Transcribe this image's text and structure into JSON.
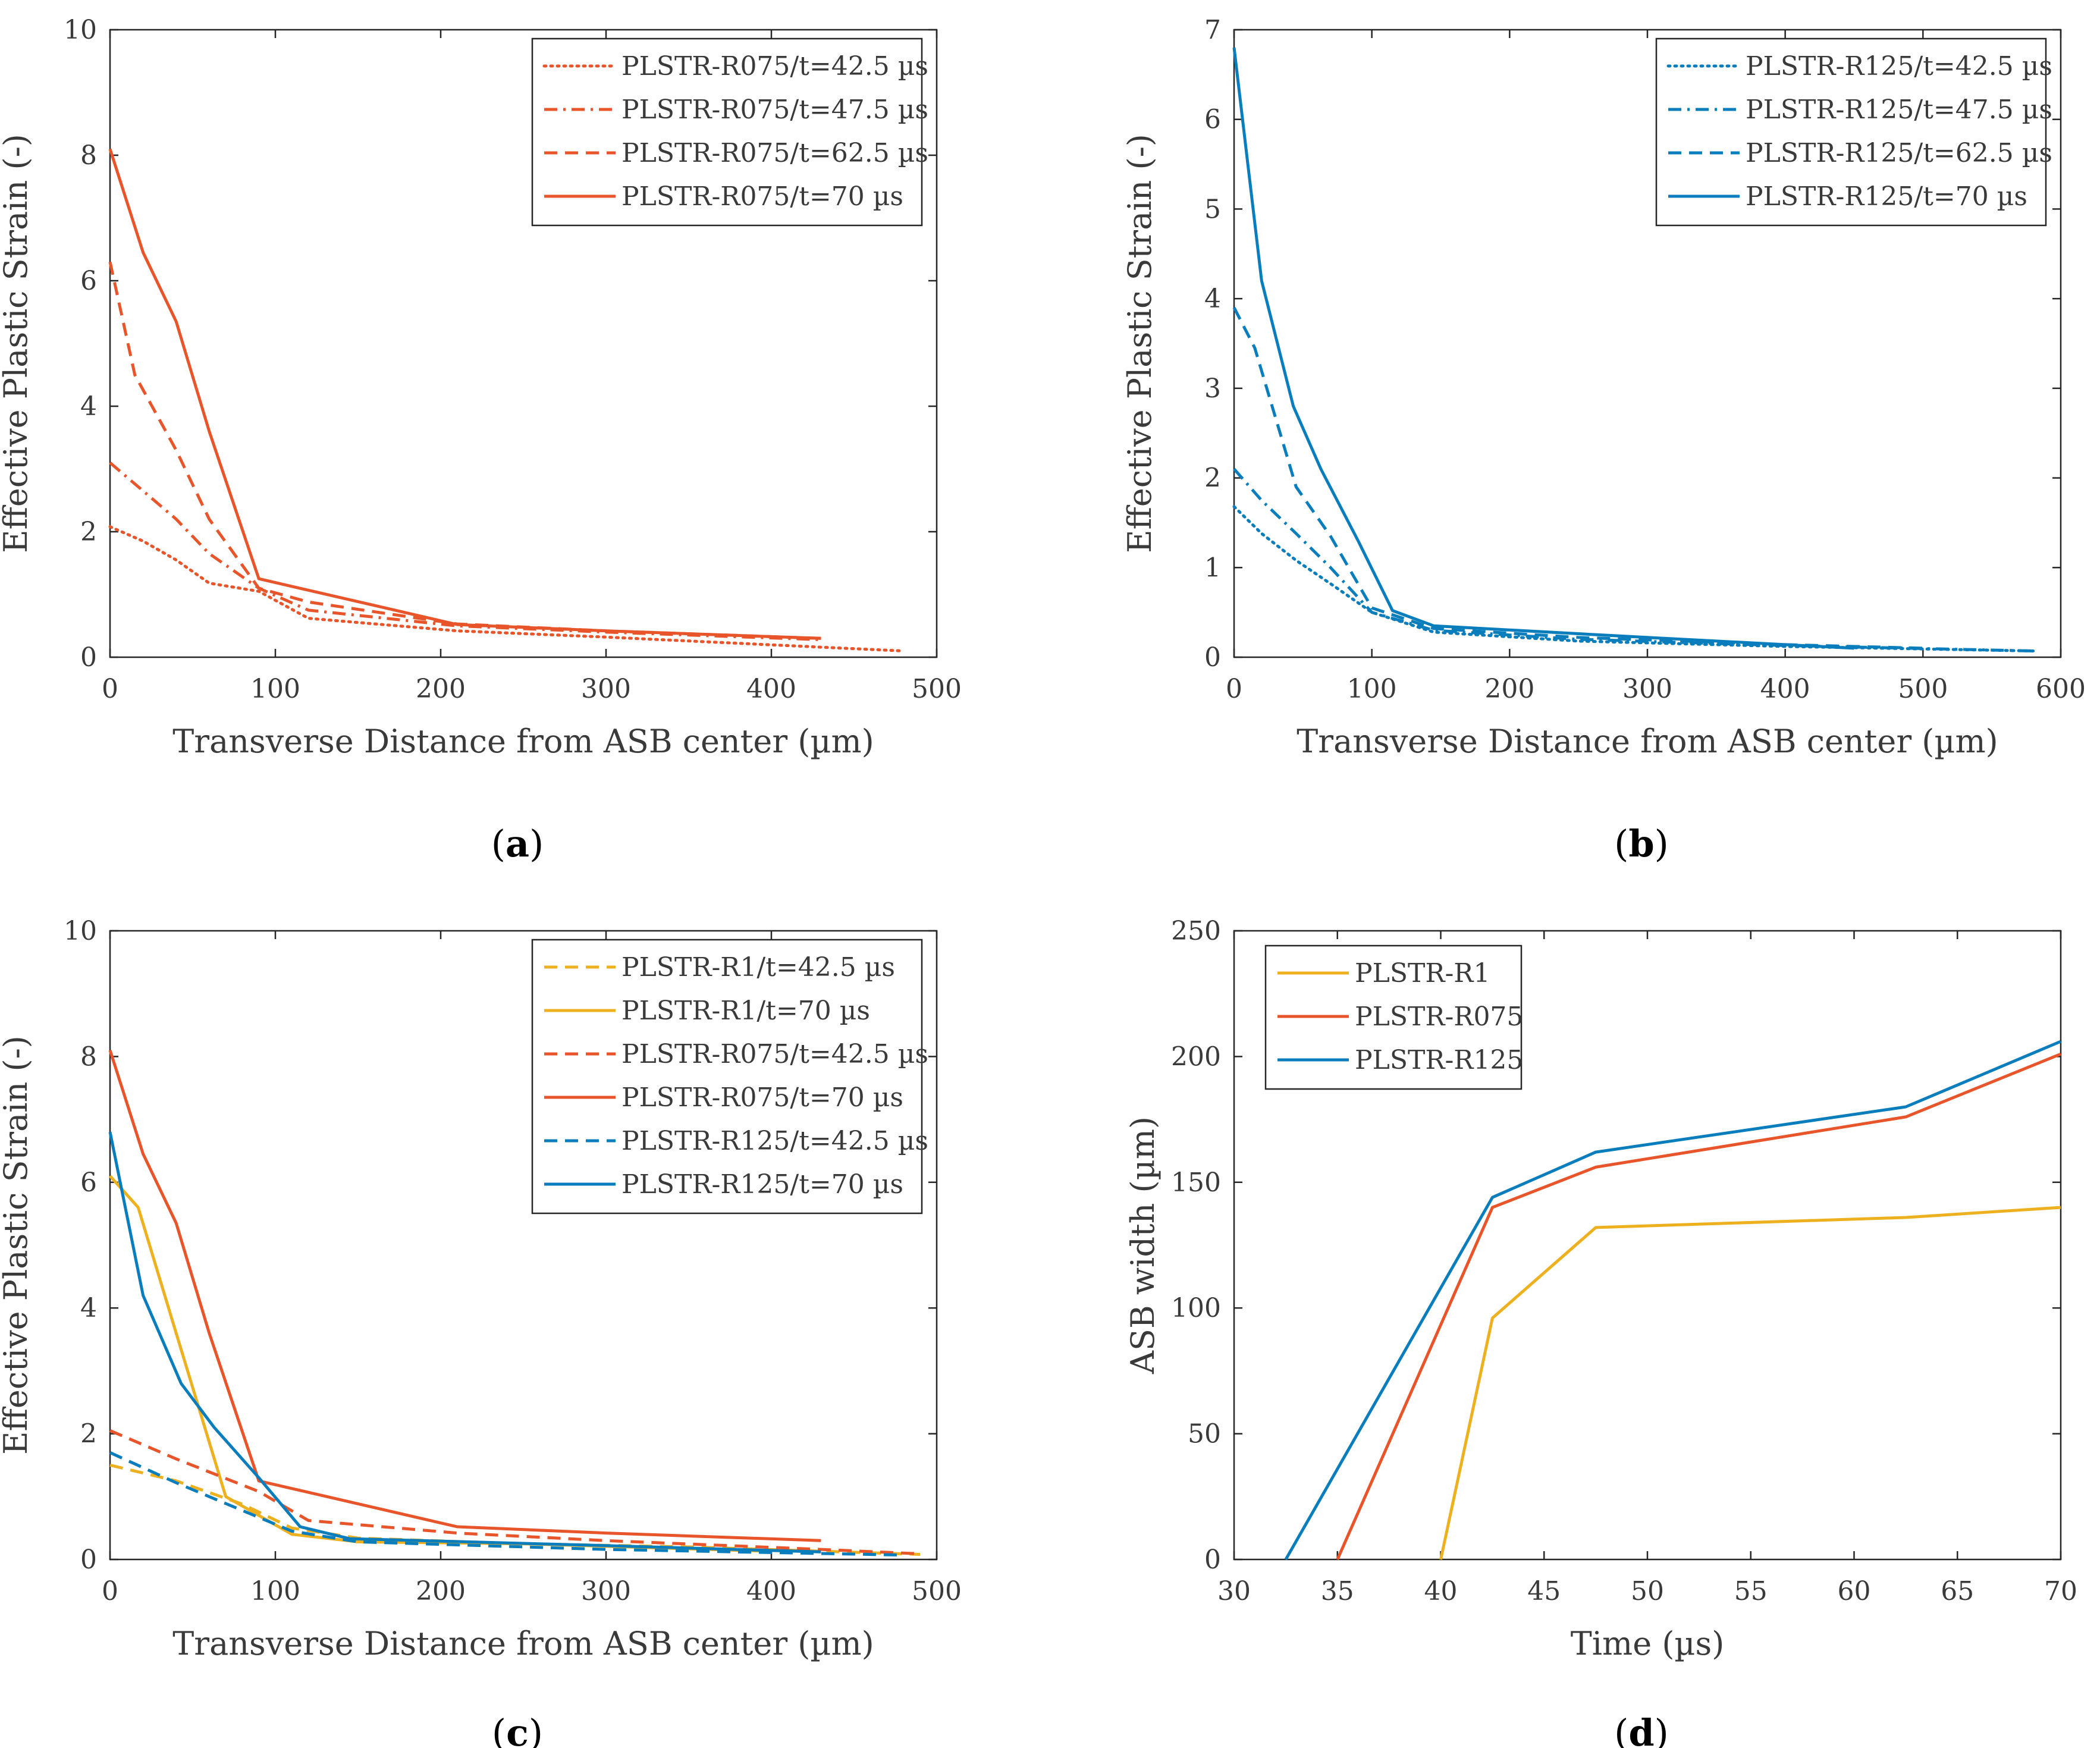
{
  "colors": {
    "R1": "#EDB120",
    "R075": "#E8552A",
    "R125": "#0A7DBC",
    "axis": "#262626"
  },
  "chart_data": [
    {
      "id": "a",
      "type": "line",
      "caption_letter": "a",
      "xlabel": "Transverse Distance from ASB center (µm)",
      "ylabel": "Effective Plastic Strain (-)",
      "xlim": [
        0,
        500
      ],
      "ylim": [
        0,
        10
      ],
      "xticks": [
        0,
        100,
        200,
        300,
        400,
        500
      ],
      "yticks": [
        0,
        2,
        4,
        6,
        8,
        10
      ],
      "legend_position": "top-right",
      "series": [
        {
          "name": "PLSTR-R075/t=42.5 µs",
          "color_key": "R075",
          "dash": "dotted",
          "x": [
            0,
            20,
            40,
            60,
            90,
            120,
            210,
            300,
            430,
            480
          ],
          "y": [
            2.08,
            1.85,
            1.55,
            1.18,
            1.05,
            0.62,
            0.42,
            0.32,
            0.16,
            0.1
          ]
        },
        {
          "name": "PLSTR-R075/t=47.5 µs",
          "color_key": "R075",
          "dash": "dashdot",
          "x": [
            0,
            20,
            40,
            60,
            90,
            120,
            210,
            300,
            430
          ],
          "y": [
            3.1,
            2.65,
            2.2,
            1.65,
            1.1,
            0.75,
            0.5,
            0.4,
            0.28
          ]
        },
        {
          "name": "PLSTR-R075/t=62.5 µs",
          "color_key": "R075",
          "dash": "dashed",
          "x": [
            0,
            15,
            40,
            60,
            90,
            120,
            210,
            300,
            430
          ],
          "y": [
            6.3,
            4.5,
            3.3,
            2.2,
            1.1,
            0.88,
            0.53,
            0.42,
            0.3
          ]
        },
        {
          "name": "PLSTR-R075/t=70 µs",
          "color_key": "R075",
          "dash": "solid",
          "x": [
            0,
            20,
            40,
            60,
            90,
            210,
            300,
            430
          ],
          "y": [
            8.1,
            6.45,
            5.35,
            3.6,
            1.25,
            0.52,
            0.42,
            0.3
          ]
        }
      ]
    },
    {
      "id": "b",
      "type": "line",
      "caption_letter": "b",
      "xlabel": "Transverse Distance from ASB center (µm)",
      "ylabel": "Effective Plastic Strain (-)",
      "xlim": [
        0,
        600
      ],
      "ylim": [
        0,
        7
      ],
      "xticks": [
        0,
        100,
        200,
        300,
        400,
        500,
        600
      ],
      "yticks": [
        0,
        1,
        2,
        3,
        4,
        5,
        6,
        7
      ],
      "legend_position": "top-right",
      "series": [
        {
          "name": "PLSTR-R125/t=42.5 µs",
          "color_key": "R125",
          "dash": "dotted",
          "x": [
            0,
            20,
            45,
            70,
            100,
            145,
            250,
            400,
            580
          ],
          "y": [
            1.68,
            1.38,
            1.08,
            0.82,
            0.5,
            0.28,
            0.18,
            0.12,
            0.07
          ]
        },
        {
          "name": "PLSTR-R125/t=47.5 µs",
          "color_key": "R125",
          "dash": "dashdot",
          "x": [
            0,
            20,
            45,
            70,
            100,
            145,
            250,
            400,
            580
          ],
          "y": [
            2.1,
            1.75,
            1.38,
            1.0,
            0.5,
            0.3,
            0.2,
            0.13,
            0.07
          ]
        },
        {
          "name": "PLSTR-R125/t=62.5 µs",
          "color_key": "R125",
          "dash": "dashed",
          "x": [
            0,
            15,
            45,
            70,
            100,
            145,
            250,
            400,
            500
          ],
          "y": [
            3.9,
            3.45,
            1.9,
            1.35,
            0.55,
            0.32,
            0.22,
            0.14,
            0.1
          ]
        },
        {
          "name": "PLSTR-R125/t=70 µs",
          "color_key": "R125",
          "dash": "solid",
          "x": [
            0,
            20,
            43,
            63,
            90,
            115,
            145,
            300,
            450
          ],
          "y": [
            6.8,
            4.2,
            2.8,
            2.1,
            1.3,
            0.52,
            0.35,
            0.22,
            0.1
          ]
        }
      ]
    },
    {
      "id": "c",
      "type": "line",
      "caption_letter": "c",
      "xlabel": "Transverse Distance from ASB center (µm)",
      "ylabel": "Effective Plastic Strain (-)",
      "xlim": [
        0,
        500
      ],
      "ylim": [
        0,
        10
      ],
      "xticks": [
        0,
        100,
        200,
        300,
        400,
        500
      ],
      "yticks": [
        0,
        2,
        4,
        6,
        8,
        10
      ],
      "legend_position": "top-right",
      "series": [
        {
          "name": "PLSTR-R1/t=42.5 µs",
          "color_key": "R1",
          "dash": "dashed",
          "x": [
            0,
            40,
            80,
            110,
            150,
            250,
            350,
            490
          ],
          "y": [
            1.5,
            1.25,
            0.88,
            0.5,
            0.34,
            0.25,
            0.2,
            0.08
          ]
        },
        {
          "name": "PLSTR-R1/t=70 µs",
          "color_key": "R1",
          "dash": "solid",
          "x": [
            0,
            17,
            40,
            70,
            110,
            150,
            250,
            400
          ],
          "y": [
            6.1,
            5.6,
            3.6,
            1.0,
            0.4,
            0.28,
            0.25,
            0.13
          ]
        },
        {
          "name": "PLSTR-R075/t=42.5 µs",
          "color_key": "R075",
          "dash": "dashed",
          "x": [
            0,
            40,
            90,
            120,
            210,
            300,
            430,
            490
          ],
          "y": [
            2.05,
            1.6,
            1.08,
            0.62,
            0.42,
            0.3,
            0.16,
            0.09
          ]
        },
        {
          "name": "PLSTR-R075/t=70 µs",
          "color_key": "R075",
          "dash": "solid",
          "x": [
            0,
            20,
            40,
            60,
            90,
            210,
            300,
            430
          ],
          "y": [
            8.1,
            6.45,
            5.35,
            3.6,
            1.25,
            0.52,
            0.42,
            0.3
          ]
        },
        {
          "name": "PLSTR-R125/t=42.5 µs",
          "color_key": "R125",
          "dash": "dashed",
          "x": [
            0,
            40,
            80,
            110,
            150,
            300,
            480
          ],
          "y": [
            1.7,
            1.22,
            0.78,
            0.45,
            0.28,
            0.16,
            0.07
          ]
        },
        {
          "name": "PLSTR-R125/t=70 µs",
          "color_key": "R125",
          "dash": "solid",
          "x": [
            0,
            20,
            43,
            63,
            90,
            115,
            145,
            300,
            430
          ],
          "y": [
            6.8,
            4.2,
            2.8,
            2.1,
            1.3,
            0.52,
            0.33,
            0.22,
            0.12
          ]
        }
      ]
    },
    {
      "id": "d",
      "type": "line",
      "caption_letter": "d",
      "xlabel": "Time (µs)",
      "ylabel": "ASB width (µm)",
      "xlim": [
        30,
        70
      ],
      "ylim": [
        0,
        250
      ],
      "xticks": [
        30,
        35,
        40,
        45,
        50,
        55,
        60,
        65,
        70
      ],
      "yticks": [
        0,
        50,
        100,
        150,
        200,
        250
      ],
      "legend_position": "top-left",
      "series": [
        {
          "name": "PLSTR-R1",
          "color_key": "R1",
          "dash": "solid",
          "x": [
            40,
            42.5,
            47.5,
            62.5,
            70
          ],
          "y": [
            0,
            96,
            132,
            136,
            140
          ]
        },
        {
          "name": "PLSTR-R075",
          "color_key": "R075",
          "dash": "solid",
          "x": [
            35,
            42.5,
            47.5,
            62.5,
            70
          ],
          "y": [
            0,
            140,
            156,
            176,
            201
          ]
        },
        {
          "name": "PLSTR-R125",
          "color_key": "R125",
          "dash": "solid",
          "x": [
            32.5,
            42.5,
            47.5,
            62.5,
            70
          ],
          "y": [
            0,
            144,
            162,
            180,
            206
          ]
        }
      ]
    }
  ]
}
